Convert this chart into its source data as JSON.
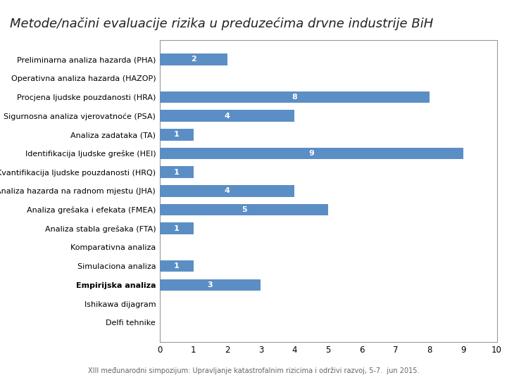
{
  "title": "Metode/načini evaluacije rizika u preduzećima drvne industrije BiH",
  "subtitle": "XIII međunarodni simpozijum: Upravljanje katastrofalnim rizicima i održivi razvoj, 5-7.  jun 2015.",
  "categories": [
    "Preliminarna analiza hazarda (PHA)",
    "Operativna analiza hazarda (HAZOP)",
    "Procjena ljudske pouzdanosti (HRA)",
    "Sigurnosna analiza vjerovatnoće (PSA)",
    "Analiza zadataka (TA)",
    "Identifikacija ljudske greške (HEI)",
    "Kvantifikacija ljudske pouzdanosti (HRQ)",
    "Analiza hazarda na radnom mjestu (JHA)",
    "Analiza grešaka i efekata (FMEA)",
    "Analiza stabla grešaka (FTA)",
    "Komparativna analiza",
    "Simulaciona analiza",
    "Empirijska analiza",
    "Ishikawa dijagram",
    "Delfi tehnike"
  ],
  "values": [
    2,
    0,
    8,
    4,
    1,
    9,
    1,
    4,
    5,
    1,
    0,
    1,
    3,
    0,
    0
  ],
  "bar_color": "#5b8ec4",
  "label_color": "#ffffff",
  "xlim": [
    0,
    10
  ],
  "xticks": [
    0,
    1,
    2,
    3,
    4,
    5,
    6,
    7,
    8,
    9,
    10
  ],
  "bold_labels": [
    "Empirijska analiza"
  ],
  "background_color": "#ffffff",
  "chart_bg_color": "#ffffff",
  "border_color": "#999999",
  "title_fontsize": 13,
  "bar_label_fontsize": 8,
  "y_tick_fontsize": 8,
  "x_tick_fontsize": 8.5,
  "subtitle_fontsize": 7
}
